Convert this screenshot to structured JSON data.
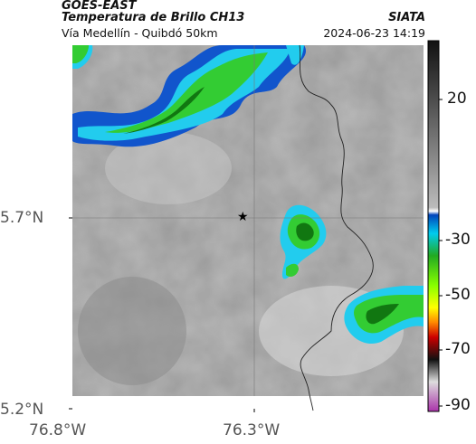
{
  "header": {
    "line1": "GOES-EAST",
    "line2": "Temperatura de Brillo CH13",
    "line3": "Vía Medellín - Quibdó 50km",
    "org": "SIATA",
    "datetime": "2024-06-23 14:19"
  },
  "axes": {
    "x_ticks": [
      "76.8°W",
      "76.3°W"
    ],
    "y_ticks": [
      "5.7°N",
      "5.2°N"
    ]
  },
  "colorbar": {
    "ticks": [
      "20",
      "-30",
      "-50",
      "-70",
      "-90"
    ],
    "colors": [
      "#222222",
      "#777777",
      "#dddddd",
      "#0033aa",
      "#00bbee",
      "#22aa22",
      "#88ff00",
      "#ffff00",
      "#ff8800",
      "#cc0000",
      "#222222",
      "#bb44bb"
    ]
  },
  "map": {
    "marker": "star-icon",
    "cloud_colors": {
      "cold_blue": "#1155cc",
      "cyan": "#22ccee",
      "green": "#33cc33",
      "dark_green": "#117711"
    }
  }
}
